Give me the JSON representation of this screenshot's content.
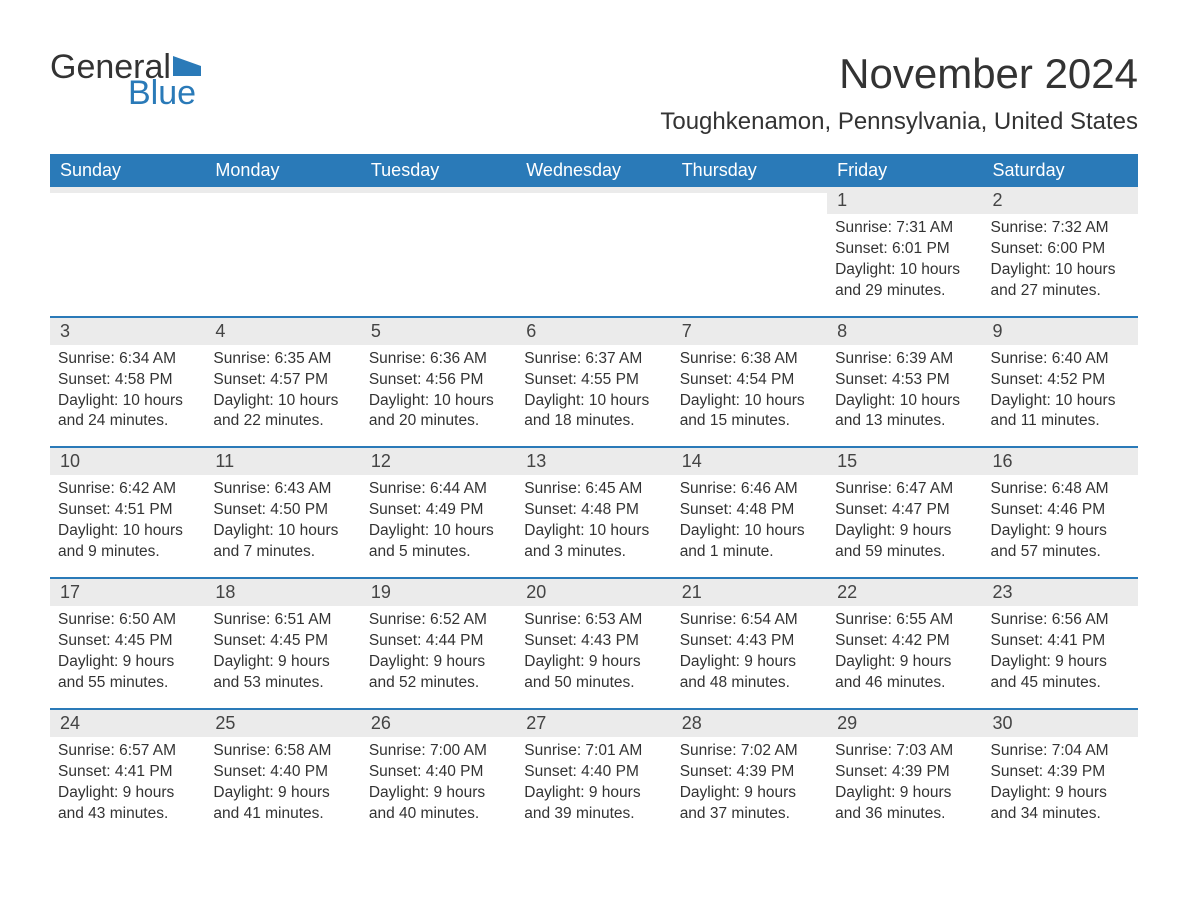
{
  "logo": {
    "word1": "General",
    "word2": "Blue",
    "flag_color": "#2a7ab8"
  },
  "title": "November 2024",
  "location": "Toughkenamon, Pennsylvania, United States",
  "colors": {
    "header_bg": "#2a7ab8",
    "header_text": "#ffffff",
    "daynum_bg": "#ebebeb",
    "text": "#333333",
    "week_border": "#2a7ab8"
  },
  "fonts": {
    "title_size": 42,
    "location_size": 24,
    "dayhead_size": 18,
    "daynum_size": 18,
    "body_size": 15.5
  },
  "dayheads": [
    "Sunday",
    "Monday",
    "Tuesday",
    "Wednesday",
    "Thursday",
    "Friday",
    "Saturday"
  ],
  "weeks": [
    [
      {
        "blank": true
      },
      {
        "blank": true
      },
      {
        "blank": true
      },
      {
        "blank": true
      },
      {
        "blank": true
      },
      {
        "num": "1",
        "sunrise": "Sunrise: 7:31 AM",
        "sunset": "Sunset: 6:01 PM",
        "daylight1": "Daylight: 10 hours",
        "daylight2": "and 29 minutes."
      },
      {
        "num": "2",
        "sunrise": "Sunrise: 7:32 AM",
        "sunset": "Sunset: 6:00 PM",
        "daylight1": "Daylight: 10 hours",
        "daylight2": "and 27 minutes."
      }
    ],
    [
      {
        "num": "3",
        "sunrise": "Sunrise: 6:34 AM",
        "sunset": "Sunset: 4:58 PM",
        "daylight1": "Daylight: 10 hours",
        "daylight2": "and 24 minutes."
      },
      {
        "num": "4",
        "sunrise": "Sunrise: 6:35 AM",
        "sunset": "Sunset: 4:57 PM",
        "daylight1": "Daylight: 10 hours",
        "daylight2": "and 22 minutes."
      },
      {
        "num": "5",
        "sunrise": "Sunrise: 6:36 AM",
        "sunset": "Sunset: 4:56 PM",
        "daylight1": "Daylight: 10 hours",
        "daylight2": "and 20 minutes."
      },
      {
        "num": "6",
        "sunrise": "Sunrise: 6:37 AM",
        "sunset": "Sunset: 4:55 PM",
        "daylight1": "Daylight: 10 hours",
        "daylight2": "and 18 minutes."
      },
      {
        "num": "7",
        "sunrise": "Sunrise: 6:38 AM",
        "sunset": "Sunset: 4:54 PM",
        "daylight1": "Daylight: 10 hours",
        "daylight2": "and 15 minutes."
      },
      {
        "num": "8",
        "sunrise": "Sunrise: 6:39 AM",
        "sunset": "Sunset: 4:53 PM",
        "daylight1": "Daylight: 10 hours",
        "daylight2": "and 13 minutes."
      },
      {
        "num": "9",
        "sunrise": "Sunrise: 6:40 AM",
        "sunset": "Sunset: 4:52 PM",
        "daylight1": "Daylight: 10 hours",
        "daylight2": "and 11 minutes."
      }
    ],
    [
      {
        "num": "10",
        "sunrise": "Sunrise: 6:42 AM",
        "sunset": "Sunset: 4:51 PM",
        "daylight1": "Daylight: 10 hours",
        "daylight2": "and 9 minutes."
      },
      {
        "num": "11",
        "sunrise": "Sunrise: 6:43 AM",
        "sunset": "Sunset: 4:50 PM",
        "daylight1": "Daylight: 10 hours",
        "daylight2": "and 7 minutes."
      },
      {
        "num": "12",
        "sunrise": "Sunrise: 6:44 AM",
        "sunset": "Sunset: 4:49 PM",
        "daylight1": "Daylight: 10 hours",
        "daylight2": "and 5 minutes."
      },
      {
        "num": "13",
        "sunrise": "Sunrise: 6:45 AM",
        "sunset": "Sunset: 4:48 PM",
        "daylight1": "Daylight: 10 hours",
        "daylight2": "and 3 minutes."
      },
      {
        "num": "14",
        "sunrise": "Sunrise: 6:46 AM",
        "sunset": "Sunset: 4:48 PM",
        "daylight1": "Daylight: 10 hours",
        "daylight2": "and 1 minute."
      },
      {
        "num": "15",
        "sunrise": "Sunrise: 6:47 AM",
        "sunset": "Sunset: 4:47 PM",
        "daylight1": "Daylight: 9 hours",
        "daylight2": "and 59 minutes."
      },
      {
        "num": "16",
        "sunrise": "Sunrise: 6:48 AM",
        "sunset": "Sunset: 4:46 PM",
        "daylight1": "Daylight: 9 hours",
        "daylight2": "and 57 minutes."
      }
    ],
    [
      {
        "num": "17",
        "sunrise": "Sunrise: 6:50 AM",
        "sunset": "Sunset: 4:45 PM",
        "daylight1": "Daylight: 9 hours",
        "daylight2": "and 55 minutes."
      },
      {
        "num": "18",
        "sunrise": "Sunrise: 6:51 AM",
        "sunset": "Sunset: 4:45 PM",
        "daylight1": "Daylight: 9 hours",
        "daylight2": "and 53 minutes."
      },
      {
        "num": "19",
        "sunrise": "Sunrise: 6:52 AM",
        "sunset": "Sunset: 4:44 PM",
        "daylight1": "Daylight: 9 hours",
        "daylight2": "and 52 minutes."
      },
      {
        "num": "20",
        "sunrise": "Sunrise: 6:53 AM",
        "sunset": "Sunset: 4:43 PM",
        "daylight1": "Daylight: 9 hours",
        "daylight2": "and 50 minutes."
      },
      {
        "num": "21",
        "sunrise": "Sunrise: 6:54 AM",
        "sunset": "Sunset: 4:43 PM",
        "daylight1": "Daylight: 9 hours",
        "daylight2": "and 48 minutes."
      },
      {
        "num": "22",
        "sunrise": "Sunrise: 6:55 AM",
        "sunset": "Sunset: 4:42 PM",
        "daylight1": "Daylight: 9 hours",
        "daylight2": "and 46 minutes."
      },
      {
        "num": "23",
        "sunrise": "Sunrise: 6:56 AM",
        "sunset": "Sunset: 4:41 PM",
        "daylight1": "Daylight: 9 hours",
        "daylight2": "and 45 minutes."
      }
    ],
    [
      {
        "num": "24",
        "sunrise": "Sunrise: 6:57 AM",
        "sunset": "Sunset: 4:41 PM",
        "daylight1": "Daylight: 9 hours",
        "daylight2": "and 43 minutes."
      },
      {
        "num": "25",
        "sunrise": "Sunrise: 6:58 AM",
        "sunset": "Sunset: 4:40 PM",
        "daylight1": "Daylight: 9 hours",
        "daylight2": "and 41 minutes."
      },
      {
        "num": "26",
        "sunrise": "Sunrise: 7:00 AM",
        "sunset": "Sunset: 4:40 PM",
        "daylight1": "Daylight: 9 hours",
        "daylight2": "and 40 minutes."
      },
      {
        "num": "27",
        "sunrise": "Sunrise: 7:01 AM",
        "sunset": "Sunset: 4:40 PM",
        "daylight1": "Daylight: 9 hours",
        "daylight2": "and 39 minutes."
      },
      {
        "num": "28",
        "sunrise": "Sunrise: 7:02 AM",
        "sunset": "Sunset: 4:39 PM",
        "daylight1": "Daylight: 9 hours",
        "daylight2": "and 37 minutes."
      },
      {
        "num": "29",
        "sunrise": "Sunrise: 7:03 AM",
        "sunset": "Sunset: 4:39 PM",
        "daylight1": "Daylight: 9 hours",
        "daylight2": "and 36 minutes."
      },
      {
        "num": "30",
        "sunrise": "Sunrise: 7:04 AM",
        "sunset": "Sunset: 4:39 PM",
        "daylight1": "Daylight: 9 hours",
        "daylight2": "and 34 minutes."
      }
    ]
  ]
}
